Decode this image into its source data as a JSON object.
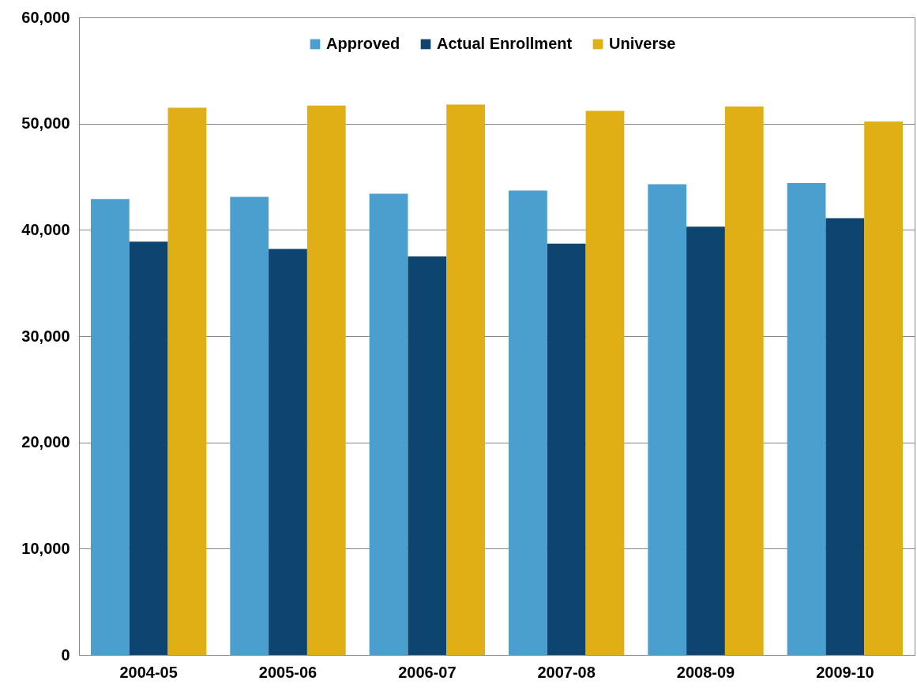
{
  "chart_data": {
    "type": "bar",
    "categories": [
      "2004-05",
      "2005-06",
      "2006-07",
      "2007-08",
      "2008-09",
      "2009-10"
    ],
    "series": [
      {
        "name": "Approved",
        "color": "#4a9fcf",
        "values": [
          42900,
          43100,
          43400,
          43700,
          44300,
          44400
        ]
      },
      {
        "name": "Actual Enrollment",
        "color": "#0e4470",
        "values": [
          38900,
          38200,
          37500,
          38700,
          40300,
          41100
        ]
      },
      {
        "name": "Universe",
        "color": "#e0ae15",
        "values": [
          51500,
          51700,
          51800,
          51200,
          51600,
          50200
        ]
      }
    ],
    "ylim": [
      0,
      60000
    ],
    "yticks": [
      0,
      {
        "value": 10000,
        "label": "10,000"
      },
      {
        "value": 20000,
        "label": "20,000"
      },
      {
        "value": 30000,
        "label": "30,000"
      },
      {
        "value": 40000,
        "label": "40,000"
      },
      {
        "value": 50000,
        "label": "50,000"
      },
      {
        "value": 60000,
        "label": "60,000"
      }
    ],
    "grid": "y",
    "legend": "top"
  }
}
